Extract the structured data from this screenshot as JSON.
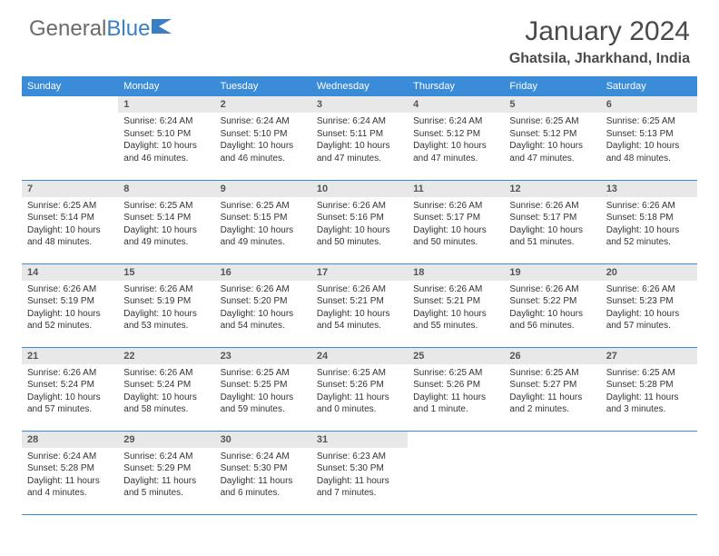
{
  "logo": {
    "text_gray": "General",
    "text_blue": "Blue"
  },
  "title": "January 2024",
  "location": "Ghatsila, Jharkhand, India",
  "day_headers": [
    "Sunday",
    "Monday",
    "Tuesday",
    "Wednesday",
    "Thursday",
    "Friday",
    "Saturday"
  ],
  "colors": {
    "header_blue": "#3a8bd8",
    "logo_blue": "#3a7fc4",
    "logo_gray": "#6b6b6b",
    "daynum_bg": "#e8e8e8",
    "text": "#333333"
  },
  "weeks": [
    [
      {
        "n": "",
        "lines": []
      },
      {
        "n": "1",
        "lines": [
          "Sunrise: 6:24 AM",
          "Sunset: 5:10 PM",
          "Daylight: 10 hours",
          "and 46 minutes."
        ]
      },
      {
        "n": "2",
        "lines": [
          "Sunrise: 6:24 AM",
          "Sunset: 5:10 PM",
          "Daylight: 10 hours",
          "and 46 minutes."
        ]
      },
      {
        "n": "3",
        "lines": [
          "Sunrise: 6:24 AM",
          "Sunset: 5:11 PM",
          "Daylight: 10 hours",
          "and 47 minutes."
        ]
      },
      {
        "n": "4",
        "lines": [
          "Sunrise: 6:24 AM",
          "Sunset: 5:12 PM",
          "Daylight: 10 hours",
          "and 47 minutes."
        ]
      },
      {
        "n": "5",
        "lines": [
          "Sunrise: 6:25 AM",
          "Sunset: 5:12 PM",
          "Daylight: 10 hours",
          "and 47 minutes."
        ]
      },
      {
        "n": "6",
        "lines": [
          "Sunrise: 6:25 AM",
          "Sunset: 5:13 PM",
          "Daylight: 10 hours",
          "and 48 minutes."
        ]
      }
    ],
    [
      {
        "n": "7",
        "lines": [
          "Sunrise: 6:25 AM",
          "Sunset: 5:14 PM",
          "Daylight: 10 hours",
          "and 48 minutes."
        ]
      },
      {
        "n": "8",
        "lines": [
          "Sunrise: 6:25 AM",
          "Sunset: 5:14 PM",
          "Daylight: 10 hours",
          "and 49 minutes."
        ]
      },
      {
        "n": "9",
        "lines": [
          "Sunrise: 6:25 AM",
          "Sunset: 5:15 PM",
          "Daylight: 10 hours",
          "and 49 minutes."
        ]
      },
      {
        "n": "10",
        "lines": [
          "Sunrise: 6:26 AM",
          "Sunset: 5:16 PM",
          "Daylight: 10 hours",
          "and 50 minutes."
        ]
      },
      {
        "n": "11",
        "lines": [
          "Sunrise: 6:26 AM",
          "Sunset: 5:17 PM",
          "Daylight: 10 hours",
          "and 50 minutes."
        ]
      },
      {
        "n": "12",
        "lines": [
          "Sunrise: 6:26 AM",
          "Sunset: 5:17 PM",
          "Daylight: 10 hours",
          "and 51 minutes."
        ]
      },
      {
        "n": "13",
        "lines": [
          "Sunrise: 6:26 AM",
          "Sunset: 5:18 PM",
          "Daylight: 10 hours",
          "and 52 minutes."
        ]
      }
    ],
    [
      {
        "n": "14",
        "lines": [
          "Sunrise: 6:26 AM",
          "Sunset: 5:19 PM",
          "Daylight: 10 hours",
          "and 52 minutes."
        ]
      },
      {
        "n": "15",
        "lines": [
          "Sunrise: 6:26 AM",
          "Sunset: 5:19 PM",
          "Daylight: 10 hours",
          "and 53 minutes."
        ]
      },
      {
        "n": "16",
        "lines": [
          "Sunrise: 6:26 AM",
          "Sunset: 5:20 PM",
          "Daylight: 10 hours",
          "and 54 minutes."
        ]
      },
      {
        "n": "17",
        "lines": [
          "Sunrise: 6:26 AM",
          "Sunset: 5:21 PM",
          "Daylight: 10 hours",
          "and 54 minutes."
        ]
      },
      {
        "n": "18",
        "lines": [
          "Sunrise: 6:26 AM",
          "Sunset: 5:21 PM",
          "Daylight: 10 hours",
          "and 55 minutes."
        ]
      },
      {
        "n": "19",
        "lines": [
          "Sunrise: 6:26 AM",
          "Sunset: 5:22 PM",
          "Daylight: 10 hours",
          "and 56 minutes."
        ]
      },
      {
        "n": "20",
        "lines": [
          "Sunrise: 6:26 AM",
          "Sunset: 5:23 PM",
          "Daylight: 10 hours",
          "and 57 minutes."
        ]
      }
    ],
    [
      {
        "n": "21",
        "lines": [
          "Sunrise: 6:26 AM",
          "Sunset: 5:24 PM",
          "Daylight: 10 hours",
          "and 57 minutes."
        ]
      },
      {
        "n": "22",
        "lines": [
          "Sunrise: 6:26 AM",
          "Sunset: 5:24 PM",
          "Daylight: 10 hours",
          "and 58 minutes."
        ]
      },
      {
        "n": "23",
        "lines": [
          "Sunrise: 6:25 AM",
          "Sunset: 5:25 PM",
          "Daylight: 10 hours",
          "and 59 minutes."
        ]
      },
      {
        "n": "24",
        "lines": [
          "Sunrise: 6:25 AM",
          "Sunset: 5:26 PM",
          "Daylight: 11 hours",
          "and 0 minutes."
        ]
      },
      {
        "n": "25",
        "lines": [
          "Sunrise: 6:25 AM",
          "Sunset: 5:26 PM",
          "Daylight: 11 hours",
          "and 1 minute."
        ]
      },
      {
        "n": "26",
        "lines": [
          "Sunrise: 6:25 AM",
          "Sunset: 5:27 PM",
          "Daylight: 11 hours",
          "and 2 minutes."
        ]
      },
      {
        "n": "27",
        "lines": [
          "Sunrise: 6:25 AM",
          "Sunset: 5:28 PM",
          "Daylight: 11 hours",
          "and 3 minutes."
        ]
      }
    ],
    [
      {
        "n": "28",
        "lines": [
          "Sunrise: 6:24 AM",
          "Sunset: 5:28 PM",
          "Daylight: 11 hours",
          "and 4 minutes."
        ]
      },
      {
        "n": "29",
        "lines": [
          "Sunrise: 6:24 AM",
          "Sunset: 5:29 PM",
          "Daylight: 11 hours",
          "and 5 minutes."
        ]
      },
      {
        "n": "30",
        "lines": [
          "Sunrise: 6:24 AM",
          "Sunset: 5:30 PM",
          "Daylight: 11 hours",
          "and 6 minutes."
        ]
      },
      {
        "n": "31",
        "lines": [
          "Sunrise: 6:23 AM",
          "Sunset: 5:30 PM",
          "Daylight: 11 hours",
          "and 7 minutes."
        ]
      },
      {
        "n": "",
        "lines": []
      },
      {
        "n": "",
        "lines": []
      },
      {
        "n": "",
        "lines": []
      }
    ]
  ]
}
